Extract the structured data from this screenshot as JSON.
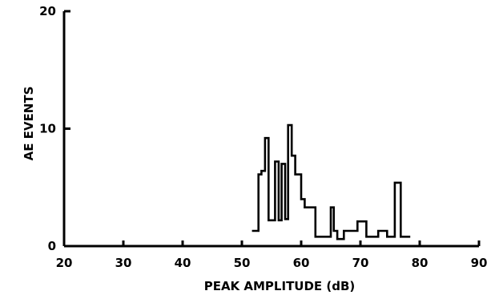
{
  "chart_data": {
    "type": "line",
    "title": "",
    "xlabel": "PEAK AMPLITUDE (dB)",
    "ylabel": "AE EVENTS",
    "xlim": [
      20,
      90
    ],
    "ylim": [
      0,
      20
    ],
    "x_ticks": [
      "20",
      "30",
      "40",
      "50",
      "60",
      "70",
      "80",
      "90"
    ],
    "y_ticks": [
      "0",
      "10",
      "20"
    ],
    "grid": false,
    "legend": "none",
    "series": [
      {
        "x": [
          51.7,
          52.8,
          52.8,
          53.3,
          53.3,
          53.9,
          53.9,
          54.5,
          54.5,
          55.6,
          55.6,
          56.2,
          56.2,
          56.7,
          56.7,
          57.3,
          57.3,
          57.8,
          57.8,
          58.4,
          58.4,
          59.0,
          59.0,
          60.0,
          60.0,
          60.6,
          60.6,
          61.2,
          61.2,
          62.4,
          62.4,
          65.0,
          65.0,
          65.5,
          65.5,
          66.1,
          66.1,
          67.2,
          67.2,
          69.5,
          69.5,
          70.0,
          70.0,
          71.0,
          71.0,
          73.0,
          73.0,
          74.5,
          74.5,
          75.8,
          75.8,
          76.8,
          76.8,
          77.6,
          77.6,
          78.4
        ],
        "y": [
          1.3,
          1.3,
          6.1,
          6.1,
          6.4,
          6.4,
          9.2,
          9.2,
          2.2,
          2.2,
          7.2,
          7.2,
          2.2,
          2.2,
          7.0,
          7.0,
          2.3,
          2.3,
          10.3,
          10.3,
          7.7,
          7.7,
          6.1,
          6.1,
          4.0,
          4.0,
          3.3,
          3.3,
          3.3,
          3.3,
          0.8,
          0.8,
          3.3,
          3.3,
          1.3,
          1.3,
          0.6,
          0.6,
          1.3,
          1.3,
          2.1,
          2.1,
          2.1,
          2.1,
          0.8,
          0.8,
          1.3,
          1.3,
          0.8,
          0.8,
          5.4,
          5.4,
          0.8,
          0.8,
          0.8,
          0.8
        ]
      }
    ]
  }
}
